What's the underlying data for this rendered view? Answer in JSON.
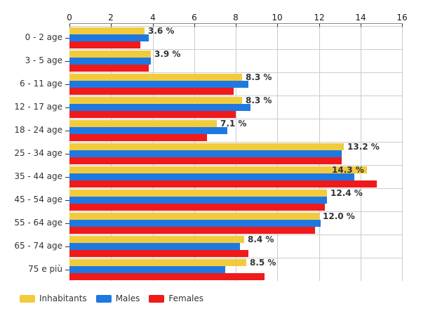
{
  "chart_data": {
    "type": "bar",
    "orientation": "horizontal",
    "title": "",
    "categories": [
      "0 - 2 age",
      "3 - 5 age",
      "6 - 11 age",
      "12 - 17 age",
      "18 - 24 age",
      "25 - 34 age",
      "35 - 44 age",
      "45 - 54 age",
      "55 - 64 age",
      "65 - 74 age",
      "75 e più"
    ],
    "series": [
      {
        "name": "Inhabitants",
        "color": "#F2CB3D",
        "values": [
          3.6,
          3.9,
          8.3,
          8.3,
          7.1,
          13.2,
          14.3,
          12.4,
          12.0,
          8.4,
          8.5
        ]
      },
      {
        "name": "Males",
        "color": "#1E78E1",
        "values": [
          3.8,
          3.9,
          8.6,
          8.7,
          7.6,
          13.1,
          13.7,
          12.4,
          12.1,
          8.2,
          7.5
        ]
      },
      {
        "name": "Females",
        "color": "#F01A1A",
        "values": [
          3.4,
          3.8,
          7.9,
          8.0,
          6.6,
          13.1,
          14.8,
          12.3,
          11.8,
          8.6,
          9.4
        ]
      }
    ],
    "value_labels": [
      "3.6 %",
      "3.9 %",
      "8.3 %",
      "8.3 %",
      "7.1 %",
      "13.2 %",
      "14.3 %",
      "12.4 %",
      "12.0 %",
      "8.4 %",
      "8.5 %"
    ],
    "x_axis": {
      "min": 0,
      "max": 16,
      "ticks": [
        0,
        2,
        4,
        6,
        8,
        10,
        12,
        14,
        16
      ],
      "position": "top"
    },
    "legend": {
      "position": "bottom-left",
      "items": [
        "Inhabitants",
        "Males",
        "Females"
      ]
    },
    "grid": true,
    "colors": {
      "gridline": "#cccccc",
      "axis": "#8a8a8a",
      "text": "#333333"
    }
  }
}
